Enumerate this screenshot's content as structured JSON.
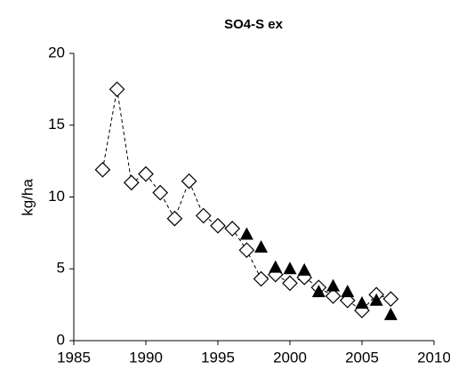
{
  "chart_data": {
    "type": "scatter",
    "title": "SO4-S ex",
    "ylabel": "kg/ha",
    "xlim": [
      1985,
      2010
    ],
    "xticks": [
      1985,
      1990,
      1995,
      2000,
      2005,
      2010
    ],
    "ylim": [
      0,
      20
    ],
    "yticks": [
      0,
      5,
      10,
      15,
      20
    ],
    "grid": false,
    "series": [
      {
        "marker": "diamond",
        "line": "dashed",
        "color": "#000000",
        "x": [
          1987,
          1988,
          1989,
          1990,
          1991,
          1992,
          1993,
          1994,
          1995,
          1996,
          1997,
          1998,
          1999,
          2000,
          2001,
          2002,
          2003,
          2004,
          2005,
          2006,
          2007
        ],
        "values": [
          11.9,
          17.5,
          11.0,
          11.6,
          10.3,
          8.5,
          11.1,
          8.7,
          8.0,
          7.8,
          6.3,
          4.3,
          4.6,
          4.0,
          4.4,
          3.7,
          3.1,
          2.8,
          2.1,
          3.2,
          2.9
        ]
      },
      {
        "marker": "triangle",
        "line": "none",
        "color": "#000000",
        "x": [
          1997,
          1998,
          1999,
          2000,
          2001,
          2002,
          2003,
          2004,
          2005,
          2006,
          2007
        ],
        "values": [
          7.4,
          6.5,
          5.1,
          5.0,
          4.9,
          3.4,
          3.8,
          3.4,
          2.6,
          2.8,
          1.8
        ]
      }
    ]
  }
}
